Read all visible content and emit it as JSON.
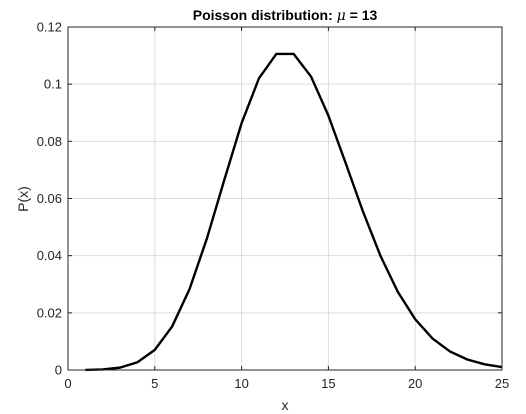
{
  "chart_data": {
    "type": "line",
    "title_prefix": "Poisson distribution: ",
    "title_symbol": "μ",
    "title_suffix": " = 13",
    "xlabel": "x",
    "ylabel": "P(x)",
    "xlim": [
      0,
      25
    ],
    "ylim": [
      0,
      0.12
    ],
    "x_ticks": [
      0,
      5,
      10,
      15,
      20,
      25
    ],
    "x_tick_labels": [
      "0",
      "5",
      "10",
      "15",
      "20",
      "25"
    ],
    "y_ticks": [
      0,
      0.02,
      0.04,
      0.06,
      0.08,
      0.1,
      0.12
    ],
    "y_tick_labels": [
      "0",
      "0.02",
      "0.04",
      "0.06",
      "0.08",
      "0.1",
      "0.12"
    ],
    "grid": true,
    "line_color": "#000000",
    "x": [
      1,
      2,
      3,
      4,
      5,
      6,
      7,
      8,
      9,
      10,
      11,
      12,
      13,
      14,
      15,
      16,
      17,
      18,
      19,
      20,
      21,
      22,
      23,
      24,
      25
    ],
    "y": [
      2.96e-05,
      0.000192,
      0.000832,
      0.002705,
      0.007033,
      0.015239,
      0.028301,
      0.045989,
      0.066428,
      0.086356,
      0.102057,
      0.110562,
      0.110562,
      0.102665,
      0.088977,
      0.072294,
      0.055284,
      0.039927,
      0.027319,
      0.017757,
      0.010992,
      0.006495,
      0.003671,
      0.001989,
      0.001034
    ]
  }
}
